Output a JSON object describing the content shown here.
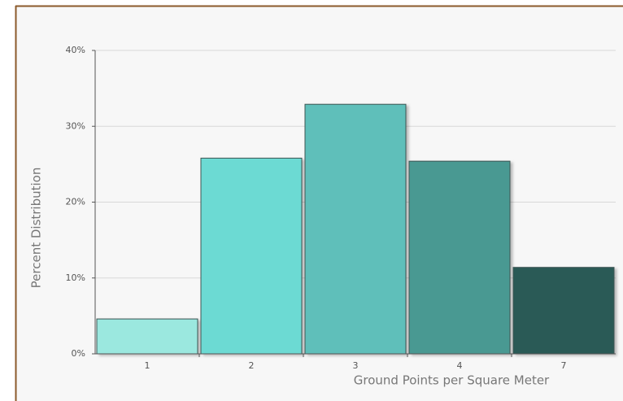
{
  "chart_data": {
    "type": "bar",
    "x_label": "Ground Points per Square Meter",
    "y_label": "Percent Distribution",
    "categories": [
      "1",
      "2",
      "3",
      "4",
      "7"
    ],
    "values": [
      4.6,
      25.8,
      32.9,
      25.4,
      11.4
    ],
    "colors": [
      "#9be8df",
      "#6cdad3",
      "#5fbfba",
      "#4a9992",
      "#2b5a56"
    ],
    "ylim": [
      0,
      40
    ],
    "yticks": [
      {
        "value": 0,
        "label": "0%"
      },
      {
        "value": 10,
        "label": "10%"
      },
      {
        "value": 20,
        "label": "20%"
      },
      {
        "value": 30,
        "label": "30%"
      },
      {
        "value": 40,
        "label": "40%"
      }
    ],
    "grid": true
  }
}
